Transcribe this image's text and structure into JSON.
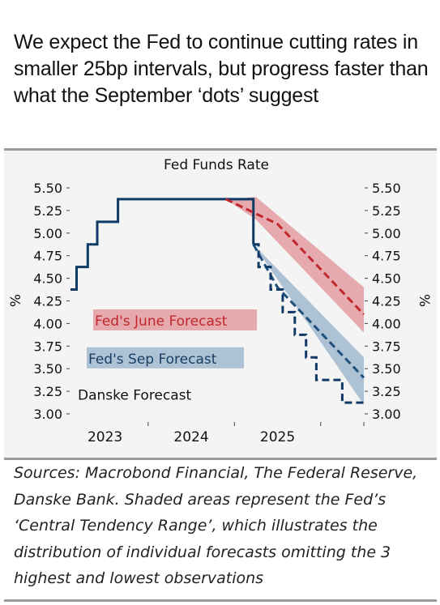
{
  "headline": "We expect the Fed to continue cutting rates in smaller 25bp intervals, but progress faster than what the September ‘dots’ suggest",
  "source_note": "Sources: Macrobond Financial, The Federal Reserve, Danske Bank. Shaded areas represent the Fed’s ‘Central Tendency Range’, which illustrates the distribution of individual forecasts omitting the 3 highest and lowest observations",
  "chart_data": {
    "type": "line",
    "title": "Fed Funds Rate",
    "ylabel": "%",
    "ylabel_right": "%",
    "ylim": [
      3.0,
      5.5
    ],
    "yticks": [
      "5.50",
      "5.25",
      "5.00",
      "4.75",
      "4.50",
      "4.25",
      "4.00",
      "3.75",
      "3.50",
      "3.25",
      "3.00"
    ],
    "xlim": [
      2022.6,
      2026.0
    ],
    "xtick_labels": [
      "2023",
      "2024",
      "2025"
    ],
    "grid": false,
    "colors": {
      "actual": "#0f3a66",
      "june": "#c0282d",
      "june_band": "#e6a9ad",
      "sep": "#1e4f7d",
      "sep_band": "#adc2d4"
    },
    "series": [
      {
        "name": "Fed Funds Rate",
        "style": "solid",
        "points": [
          [
            2022.6,
            4.375
          ],
          [
            2022.67,
            4.375
          ],
          [
            2022.67,
            4.625
          ],
          [
            2022.8,
            4.625
          ],
          [
            2022.8,
            4.875
          ],
          [
            2022.91,
            4.875
          ],
          [
            2022.91,
            5.125
          ],
          [
            2023.15,
            5.125
          ],
          [
            2023.15,
            5.375
          ],
          [
            2024.72,
            5.375
          ],
          [
            2024.72,
            4.875
          ]
        ]
      },
      {
        "name": "Fed's June Forecast",
        "style": "dashed",
        "label_y": 4.04,
        "points": [
          [
            2024.4,
            5.375
          ],
          [
            2025.0,
            5.1
          ],
          [
            2026.0,
            4.1
          ]
        ]
      },
      {
        "name": "Fed's Sep Forecast",
        "style": "dashed",
        "label_y": 3.62,
        "points": [
          [
            2024.72,
            4.875
          ],
          [
            2025.0,
            4.4
          ],
          [
            2026.0,
            3.4
          ]
        ]
      },
      {
        "name": "Danske Forecast",
        "style": "dashed",
        "label_y": 3.22,
        "points": [
          [
            2024.72,
            4.875
          ],
          [
            2024.78,
            4.875
          ],
          [
            2024.78,
            4.625
          ],
          [
            2024.92,
            4.625
          ],
          [
            2024.92,
            4.375
          ],
          [
            2025.06,
            4.375
          ],
          [
            2025.06,
            4.125
          ],
          [
            2025.2,
            4.125
          ],
          [
            2025.2,
            3.875
          ],
          [
            2025.33,
            3.875
          ],
          [
            2025.33,
            3.625
          ],
          [
            2025.45,
            3.625
          ],
          [
            2025.45,
            3.375
          ],
          [
            2025.75,
            3.375
          ],
          [
            2025.75,
            3.125
          ],
          [
            2026.0,
            3.125
          ]
        ]
      }
    ],
    "bands": [
      {
        "name": "Fed's June Forecast",
        "upper": [
          [
            2024.4,
            5.375
          ],
          [
            2024.75,
            5.4
          ],
          [
            2026.0,
            4.4
          ]
        ],
        "lower": [
          [
            2024.4,
            5.375
          ],
          [
            2024.75,
            5.15
          ],
          [
            2026.0,
            3.9
          ]
        ]
      },
      {
        "name": "Fed's Sep Forecast",
        "upper": [
          [
            2024.72,
            4.875
          ],
          [
            2026.0,
            3.625
          ]
        ],
        "lower": [
          [
            2024.72,
            4.875
          ],
          [
            2026.0,
            3.1
          ]
        ]
      }
    ]
  }
}
